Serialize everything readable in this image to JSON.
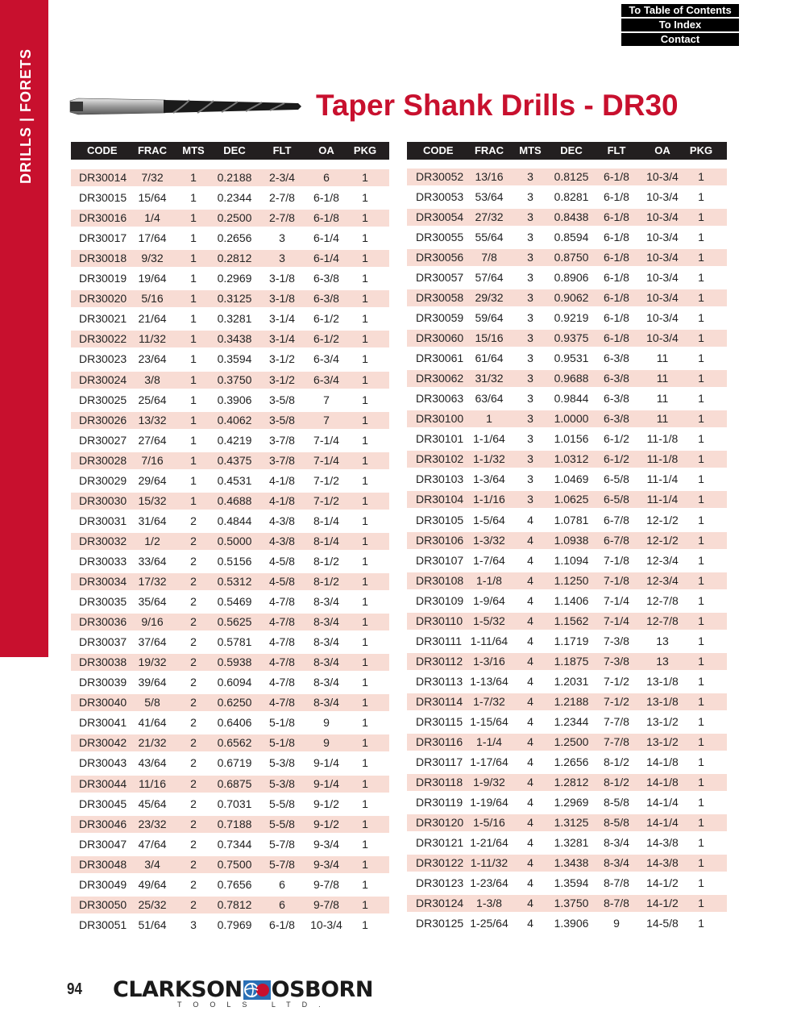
{
  "sidebar": {
    "label": "DRILLS | FORETS",
    "color": "#c8102e"
  },
  "nav": {
    "toc": "To Table of Contents",
    "index": "To Index",
    "contact": "Contact"
  },
  "page": {
    "title": "Taper Shank Drills - DR30",
    "page_number": "94"
  },
  "brand": {
    "logo_text_left": "CLARKSON",
    "logo_text_right": "OSBORN",
    "logo_sub": "TOOLS LTD.",
    "icon": "clarkson-osborn-logo-icon"
  },
  "colors": {
    "accent": "#c8102e",
    "header_bg": "#231f20",
    "row_alt": "#f8dcd4"
  },
  "columns": [
    "CODE",
    "FRAC",
    "MTS",
    "DEC",
    "FLT",
    "OA",
    "PKG"
  ],
  "tables": {
    "left": [
      [
        "DR30014",
        "7/32",
        "1",
        "0.2188",
        "2-3/4",
        "6",
        "1"
      ],
      [
        "DR30015",
        "15/64",
        "1",
        "0.2344",
        "2-7/8",
        "6-1/8",
        "1"
      ],
      [
        "DR30016",
        "1/4",
        "1",
        "0.2500",
        "2-7/8",
        "6-1/8",
        "1"
      ],
      [
        "DR30017",
        "17/64",
        "1",
        "0.2656",
        "3",
        "6-1/4",
        "1"
      ],
      [
        "DR30018",
        "9/32",
        "1",
        "0.2812",
        "3",
        "6-1/4",
        "1"
      ],
      [
        "DR30019",
        "19/64",
        "1",
        "0.2969",
        "3-1/8",
        "6-3/8",
        "1"
      ],
      [
        "DR30020",
        "5/16",
        "1",
        "0.3125",
        "3-1/8",
        "6-3/8",
        "1"
      ],
      [
        "DR30021",
        "21/64",
        "1",
        "0.3281",
        "3-1/4",
        "6-1/2",
        "1"
      ],
      [
        "DR30022",
        "11/32",
        "1",
        "0.3438",
        "3-1/4",
        "6-1/2",
        "1"
      ],
      [
        "DR30023",
        "23/64",
        "1",
        "0.3594",
        "3-1/2",
        "6-3/4",
        "1"
      ],
      [
        "DR30024",
        "3/8",
        "1",
        "0.3750",
        "3-1/2",
        "6-3/4",
        "1"
      ],
      [
        "DR30025",
        "25/64",
        "1",
        "0.3906",
        "3-5/8",
        "7",
        "1"
      ],
      [
        "DR30026",
        "13/32",
        "1",
        "0.4062",
        "3-5/8",
        "7",
        "1"
      ],
      [
        "DR30027",
        "27/64",
        "1",
        "0.4219",
        "3-7/8",
        "7-1/4",
        "1"
      ],
      [
        "DR30028",
        "7/16",
        "1",
        "0.4375",
        "3-7/8",
        "7-1/4",
        "1"
      ],
      [
        "DR30029",
        "29/64",
        "1",
        "0.4531",
        "4-1/8",
        "7-1/2",
        "1"
      ],
      [
        "DR30030",
        "15/32",
        "1",
        "0.4688",
        "4-1/8",
        "7-1/2",
        "1"
      ],
      [
        "DR30031",
        "31/64",
        "2",
        "0.4844",
        "4-3/8",
        "8-1/4",
        "1"
      ],
      [
        "DR30032",
        "1/2",
        "2",
        "0.5000",
        "4-3/8",
        "8-1/4",
        "1"
      ],
      [
        "DR30033",
        "33/64",
        "2",
        "0.5156",
        "4-5/8",
        "8-1/2",
        "1"
      ],
      [
        "DR30034",
        "17/32",
        "2",
        "0.5312",
        "4-5/8",
        "8-1/2",
        "1"
      ],
      [
        "DR30035",
        "35/64",
        "2",
        "0.5469",
        "4-7/8",
        "8-3/4",
        "1"
      ],
      [
        "DR30036",
        "9/16",
        "2",
        "0.5625",
        "4-7/8",
        "8-3/4",
        "1"
      ],
      [
        "DR30037",
        "37/64",
        "2",
        "0.5781",
        "4-7/8",
        "8-3/4",
        "1"
      ],
      [
        "DR30038",
        "19/32",
        "2",
        "0.5938",
        "4-7/8",
        "8-3/4",
        "1"
      ],
      [
        "DR30039",
        "39/64",
        "2",
        "0.6094",
        "4-7/8",
        "8-3/4",
        "1"
      ],
      [
        "DR30040",
        "5/8",
        "2",
        "0.6250",
        "4-7/8",
        "8-3/4",
        "1"
      ],
      [
        "DR30041",
        "41/64",
        "2",
        "0.6406",
        "5-1/8",
        "9",
        "1"
      ],
      [
        "DR30042",
        "21/32",
        "2",
        "0.6562",
        "5-1/8",
        "9",
        "1"
      ],
      [
        "DR30043",
        "43/64",
        "2",
        "0.6719",
        "5-3/8",
        "9-1/4",
        "1"
      ],
      [
        "DR30044",
        "11/16",
        "2",
        "0.6875",
        "5-3/8",
        "9-1/4",
        "1"
      ],
      [
        "DR30045",
        "45/64",
        "2",
        "0.7031",
        "5-5/8",
        "9-1/2",
        "1"
      ],
      [
        "DR30046",
        "23/32",
        "2",
        "0.7188",
        "5-5/8",
        "9-1/2",
        "1"
      ],
      [
        "DR30047",
        "47/64",
        "2",
        "0.7344",
        "5-7/8",
        "9-3/4",
        "1"
      ],
      [
        "DR30048",
        "3/4",
        "2",
        "0.7500",
        "5-7/8",
        "9-3/4",
        "1"
      ],
      [
        "DR30049",
        "49/64",
        "2",
        "0.7656",
        "6",
        "9-7/8",
        "1"
      ],
      [
        "DR30050",
        "25/32",
        "2",
        "0.7812",
        "6",
        "9-7/8",
        "1"
      ],
      [
        "DR30051",
        "51/64",
        "3",
        "0.7969",
        "6-1/8",
        "10-3/4",
        "1"
      ]
    ],
    "right": [
      [
        "DR30052",
        "13/16",
        "3",
        "0.8125",
        "6-1/8",
        "10-3/4",
        "1"
      ],
      [
        "DR30053",
        "53/64",
        "3",
        "0.8281",
        "6-1/8",
        "10-3/4",
        "1"
      ],
      [
        "DR30054",
        "27/32",
        "3",
        "0.8438",
        "6-1/8",
        "10-3/4",
        "1"
      ],
      [
        "DR30055",
        "55/64",
        "3",
        "0.8594",
        "6-1/8",
        "10-3/4",
        "1"
      ],
      [
        "DR30056",
        "7/8",
        "3",
        "0.8750",
        "6-1/8",
        "10-3/4",
        "1"
      ],
      [
        "DR30057",
        "57/64",
        "3",
        "0.8906",
        "6-1/8",
        "10-3/4",
        "1"
      ],
      [
        "DR30058",
        "29/32",
        "3",
        "0.9062",
        "6-1/8",
        "10-3/4",
        "1"
      ],
      [
        "DR30059",
        "59/64",
        "3",
        "0.9219",
        "6-1/8",
        "10-3/4",
        "1"
      ],
      [
        "DR30060",
        "15/16",
        "3",
        "0.9375",
        "6-1/8",
        "10-3/4",
        "1"
      ],
      [
        "DR30061",
        "61/64",
        "3",
        "0.9531",
        "6-3/8",
        "11",
        "1"
      ],
      [
        "DR30062",
        "31/32",
        "3",
        "0.9688",
        "6-3/8",
        "11",
        "1"
      ],
      [
        "DR30063",
        "63/64",
        "3",
        "0.9844",
        "6-3/8",
        "11",
        "1"
      ],
      [
        "DR30100",
        "1",
        "3",
        "1.0000",
        "6-3/8",
        "11",
        "1"
      ],
      [
        "DR30101",
        "1-1/64",
        "3",
        "1.0156",
        "6-1/2",
        "11-1/8",
        "1"
      ],
      [
        "DR30102",
        "1-1/32",
        "3",
        "1.0312",
        "6-1/2",
        "11-1/8",
        "1"
      ],
      [
        "DR30103",
        "1-3/64",
        "3",
        "1.0469",
        "6-5/8",
        "11-1/4",
        "1"
      ],
      [
        "DR30104",
        "1-1/16",
        "3",
        "1.0625",
        "6-5/8",
        "11-1/4",
        "1"
      ],
      [
        "DR30105",
        "1-5/64",
        "4",
        "1.0781",
        "6-7/8",
        "12-1/2",
        "1"
      ],
      [
        "DR30106",
        "1-3/32",
        "4",
        "1.0938",
        "6-7/8",
        "12-1/2",
        "1"
      ],
      [
        "DR30107",
        "1-7/64",
        "4",
        "1.1094",
        "7-1/8",
        "12-3/4",
        "1"
      ],
      [
        "DR30108",
        "1-1/8",
        "4",
        "1.1250",
        "7-1/8",
        "12-3/4",
        "1"
      ],
      [
        "DR30109",
        "1-9/64",
        "4",
        "1.1406",
        "7-1/4",
        "12-7/8",
        "1"
      ],
      [
        "DR30110",
        "1-5/32",
        "4",
        "1.1562",
        "7-1/4",
        "12-7/8",
        "1"
      ],
      [
        "DR30111",
        "1-11/64",
        "4",
        "1.1719",
        "7-3/8",
        "13",
        "1"
      ],
      [
        "DR30112",
        "1-3/16",
        "4",
        "1.1875",
        "7-3/8",
        "13",
        "1"
      ],
      [
        "DR30113",
        "1-13/64",
        "4",
        "1.2031",
        "7-1/2",
        "13-1/8",
        "1"
      ],
      [
        "DR30114",
        "1-7/32",
        "4",
        "1.2188",
        "7-1/2",
        "13-1/8",
        "1"
      ],
      [
        "DR30115",
        "1-15/64",
        "4",
        "1.2344",
        "7-7/8",
        "13-1/2",
        "1"
      ],
      [
        "DR30116",
        "1-1/4",
        "4",
        "1.2500",
        "7-7/8",
        "13-1/2",
        "1"
      ],
      [
        "DR30117",
        "1-17/64",
        "4",
        "1.2656",
        "8-1/2",
        "14-1/8",
        "1"
      ],
      [
        "DR30118",
        "1-9/32",
        "4",
        "1.2812",
        "8-1/2",
        "14-1/8",
        "1"
      ],
      [
        "DR30119",
        "1-19/64",
        "4",
        "1.2969",
        "8-5/8",
        "14-1/4",
        "1"
      ],
      [
        "DR30120",
        "1-5/16",
        "4",
        "1.3125",
        "8-5/8",
        "14-1/4",
        "1"
      ],
      [
        "DR30121",
        "1-21/64",
        "4",
        "1.3281",
        "8-3/4",
        "14-3/8",
        "1"
      ],
      [
        "DR30122",
        "1-11/32",
        "4",
        "1.3438",
        "8-3/4",
        "14-3/8",
        "1"
      ],
      [
        "DR30123",
        "1-23/64",
        "4",
        "1.3594",
        "8-7/8",
        "14-1/2",
        "1"
      ],
      [
        "DR30124",
        "1-3/8",
        "4",
        "1.3750",
        "8-7/8",
        "14-1/2",
        "1"
      ],
      [
        "DR30125",
        "1-25/64",
        "4",
        "1.3906",
        "9",
        "14-5/8",
        "1"
      ]
    ]
  }
}
